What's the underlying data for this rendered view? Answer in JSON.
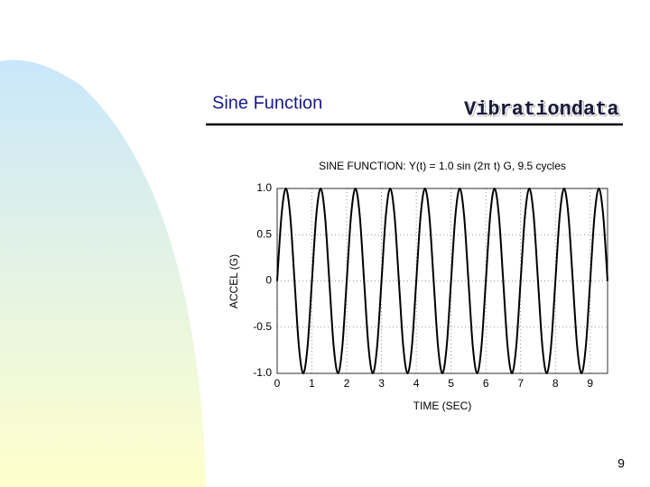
{
  "header": {
    "title": "Sine Function",
    "brand": "Vibrationdata"
  },
  "page_number": "9",
  "chart_data": {
    "type": "line",
    "title": "SINE FUNCTION:   Y(t) = 1.0 sin (2π t)   G,    9.5 cycles",
    "x_label": "TIME (SEC)",
    "y_label": "ACCEL (G)",
    "xlim": [
      0,
      9.5
    ],
    "ylim": [
      -1,
      1
    ],
    "xticks": [
      0,
      1,
      2,
      3,
      4,
      5,
      6,
      7,
      8,
      9
    ],
    "yticks": [
      {
        "value": -1,
        "label": "-1.0"
      },
      -0.5,
      0,
      0.5,
      {
        "value": 1,
        "label": "1.0"
      }
    ],
    "grid": true,
    "series": [
      {
        "color": "#000000",
        "x": [
          0,
          0.125,
          0.25,
          0.375,
          0.5,
          0.625,
          0.75,
          0.875,
          1,
          1.125,
          1.25,
          1.375,
          1.5,
          1.625,
          1.75,
          1.875,
          2,
          2.125,
          2.25,
          2.375,
          2.5,
          2.625,
          2.75,
          2.875,
          3,
          3.125,
          3.25,
          3.375,
          3.5,
          3.625,
          3.75,
          3.875,
          4,
          4.125,
          4.25,
          4.375,
          4.5,
          4.625,
          4.75,
          4.875,
          5,
          5.125,
          5.25,
          5.375,
          5.5,
          5.625,
          5.75,
          5.875,
          6,
          6.125,
          6.25,
          6.375,
          6.5,
          6.625,
          6.75,
          6.875,
          7,
          7.125,
          7.25,
          7.375,
          7.5,
          7.625,
          7.75,
          7.875,
          8,
          8.125,
          8.25,
          8.375,
          8.5,
          8.625,
          8.75,
          8.875,
          9,
          9.125,
          9.25,
          9.375,
          9.5
        ],
        "values": [
          0,
          0.707,
          1,
          0.707,
          0,
          -0.707,
          -1,
          -0.707,
          0,
          0.707,
          1,
          0.707,
          0,
          -0.707,
          -1,
          -0.707,
          0,
          0.707,
          1,
          0.707,
          0,
          -0.707,
          -1,
          -0.707,
          0,
          0.707,
          1,
          0.707,
          0,
          -0.707,
          -1,
          -0.707,
          0,
          0.707,
          1,
          0.707,
          0,
          -0.707,
          -1,
          -0.707,
          0,
          0.707,
          1,
          0.707,
          0,
          -0.707,
          -1,
          -0.707,
          0,
          0.707,
          1,
          0.707,
          0,
          -0.707,
          -1,
          -0.707,
          0,
          0.707,
          1,
          0.707,
          0,
          -0.707,
          -1,
          -0.707,
          0,
          0.707,
          1,
          0.707,
          0,
          -0.707,
          -1,
          -0.707,
          0,
          0.707,
          1,
          0.707,
          0
        ]
      }
    ]
  }
}
